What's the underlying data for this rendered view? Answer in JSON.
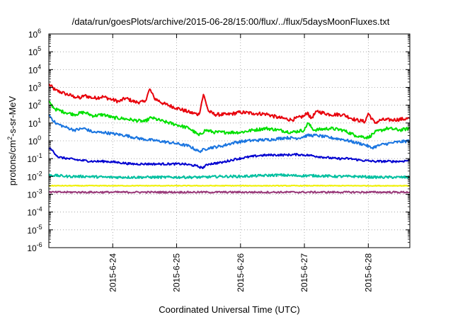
{
  "chart_data": {
    "type": "line",
    "title": "/data/run/goesPlots/archive/2015-06-28/15:00/flux/../flux/5daysMoonFluxes.txt",
    "xlabel": "Coordinated Universal Time (UTC)",
    "ylabel": {
      "prefix": "protons/cm",
      "sup": "2",
      "suffix": "-s-sr-MeV"
    },
    "yscale": "log",
    "ylim_exp": [
      -6,
      6
    ],
    "ytick_base": "10",
    "ytick_exponents": [
      "-6",
      "-5",
      "-4",
      "-3",
      "-2",
      "-1",
      "0",
      "1",
      "2",
      "3",
      "4",
      "5",
      "6"
    ],
    "xlim": [
      23.0,
      28.65
    ],
    "xtick_values": [
      24,
      25,
      26,
      27,
      28
    ],
    "xtick_labels": [
      "2015-6-24",
      "2015-6-25",
      "2015-6-26",
      "2015-6-27",
      "2015-6-28"
    ],
    "grid": true,
    "series": [
      {
        "color": "#e8000b",
        "x": [
          23.0,
          23.1,
          23.25,
          23.4,
          23.5,
          23.55,
          23.7,
          23.85,
          24.0,
          24.1,
          24.2,
          24.35,
          24.5,
          24.58,
          24.65,
          24.8,
          25.0,
          25.2,
          25.35,
          25.42,
          25.5,
          25.6,
          25.8,
          26.0,
          26.2,
          26.4,
          26.6,
          26.8,
          27.0,
          27.05,
          27.1,
          27.2,
          27.4,
          27.6,
          27.8,
          27.95,
          28.0,
          28.1,
          28.2,
          28.4,
          28.65
        ],
        "y": [
          1500,
          700,
          450,
          300,
          250,
          350,
          250,
          300,
          200,
          160,
          250,
          150,
          150,
          800,
          250,
          120,
          70,
          40,
          30,
          400,
          45,
          30,
          30,
          40,
          35,
          32,
          20,
          15,
          25,
          40,
          18,
          45,
          30,
          30,
          15,
          12,
          35,
          10,
          15,
          15,
          18
        ]
      },
      {
        "color": "#00e000",
        "x": [
          23.0,
          23.1,
          23.25,
          23.4,
          23.55,
          23.7,
          23.85,
          24.0,
          24.15,
          24.3,
          24.5,
          24.6,
          24.8,
          25.0,
          25.2,
          25.35,
          25.45,
          25.6,
          25.8,
          26.0,
          26.2,
          26.4,
          26.6,
          26.8,
          27.0,
          27.05,
          27.15,
          27.4,
          27.6,
          27.8,
          28.0,
          28.1,
          28.3,
          28.5,
          28.65
        ],
        "y": [
          150,
          60,
          40,
          30,
          40,
          25,
          30,
          20,
          18,
          15,
          12,
          20,
          12,
          8,
          5,
          2,
          4,
          3,
          3,
          3,
          4,
          5,
          4,
          3,
          4,
          10,
          4,
          5,
          4,
          2,
          1.5,
          3,
          5,
          4,
          5
        ]
      },
      {
        "color": "#1a75e0",
        "x": [
          23.0,
          23.1,
          23.25,
          23.4,
          23.55,
          23.7,
          23.85,
          24.0,
          24.2,
          24.35,
          24.5,
          24.7,
          25.0,
          25.2,
          25.35,
          25.5,
          25.7,
          25.9,
          26.1,
          26.3,
          26.5,
          26.7,
          26.9,
          27.05,
          27.2,
          27.4,
          27.6,
          27.8,
          27.95,
          28.05,
          28.2,
          28.4,
          28.65
        ],
        "y": [
          30,
          10,
          6,
          4,
          5,
          3,
          3,
          2.5,
          2,
          1.5,
          1.2,
          1,
          0.7,
          0.5,
          0.25,
          0.4,
          0.5,
          0.8,
          1.0,
          1.1,
          1.2,
          1.5,
          1.4,
          2,
          2,
          1.5,
          1.2,
          0.8,
          0.6,
          0.4,
          0.6,
          0.8,
          1.0
        ]
      },
      {
        "color": "#0000d0",
        "x": [
          23.0,
          23.05,
          23.15,
          23.3,
          23.5,
          23.7,
          23.9,
          24.1,
          24.3,
          24.5,
          24.7,
          24.9,
          25.1,
          25.3,
          25.4,
          25.5,
          25.7,
          25.9,
          26.1,
          26.3,
          26.5,
          26.7,
          26.9,
          27.1,
          27.3,
          27.5,
          27.7,
          27.9,
          28.1,
          28.3,
          28.5,
          28.65
        ],
        "y": [
          0.4,
          0.3,
          0.12,
          0.1,
          0.08,
          0.07,
          0.07,
          0.06,
          0.05,
          0.05,
          0.05,
          0.05,
          0.05,
          0.04,
          0.03,
          0.05,
          0.06,
          0.09,
          0.12,
          0.15,
          0.16,
          0.16,
          0.17,
          0.15,
          0.12,
          0.1,
          0.1,
          0.08,
          0.07,
          0.07,
          0.07,
          0.08
        ]
      },
      {
        "color": "#00c0a0",
        "x": [
          23.0,
          23.3,
          23.6,
          23.9,
          24.2,
          24.5,
          24.8,
          25.1,
          25.4,
          25.7,
          26.0,
          26.3,
          26.6,
          26.9,
          27.2,
          27.5,
          27.8,
          28.1,
          28.4,
          28.65
        ],
        "y": [
          0.012,
          0.01,
          0.01,
          0.009,
          0.009,
          0.009,
          0.009,
          0.009,
          0.009,
          0.01,
          0.01,
          0.011,
          0.012,
          0.011,
          0.011,
          0.01,
          0.01,
          0.009,
          0.009,
          0.009
        ]
      },
      {
        "color": "#f0f000",
        "x": [
          23.0,
          23.5,
          24.0,
          24.5,
          25.0,
          25.5,
          26.0,
          26.5,
          27.0,
          27.5,
          28.0,
          28.65
        ],
        "y": [
          0.003,
          0.003,
          0.003,
          0.003,
          0.003,
          0.003,
          0.003,
          0.003,
          0.003,
          0.003,
          0.003,
          0.003
        ]
      },
      {
        "color": "#993a7a",
        "x": [
          23.0,
          23.5,
          24.0,
          24.5,
          25.0,
          25.5,
          26.0,
          26.5,
          27.0,
          27.5,
          28.0,
          28.65
        ],
        "y": [
          0.0013,
          0.0013,
          0.0013,
          0.0013,
          0.0013,
          0.0013,
          0.0013,
          0.0013,
          0.0013,
          0.0013,
          0.0013,
          0.0013
        ]
      }
    ]
  }
}
